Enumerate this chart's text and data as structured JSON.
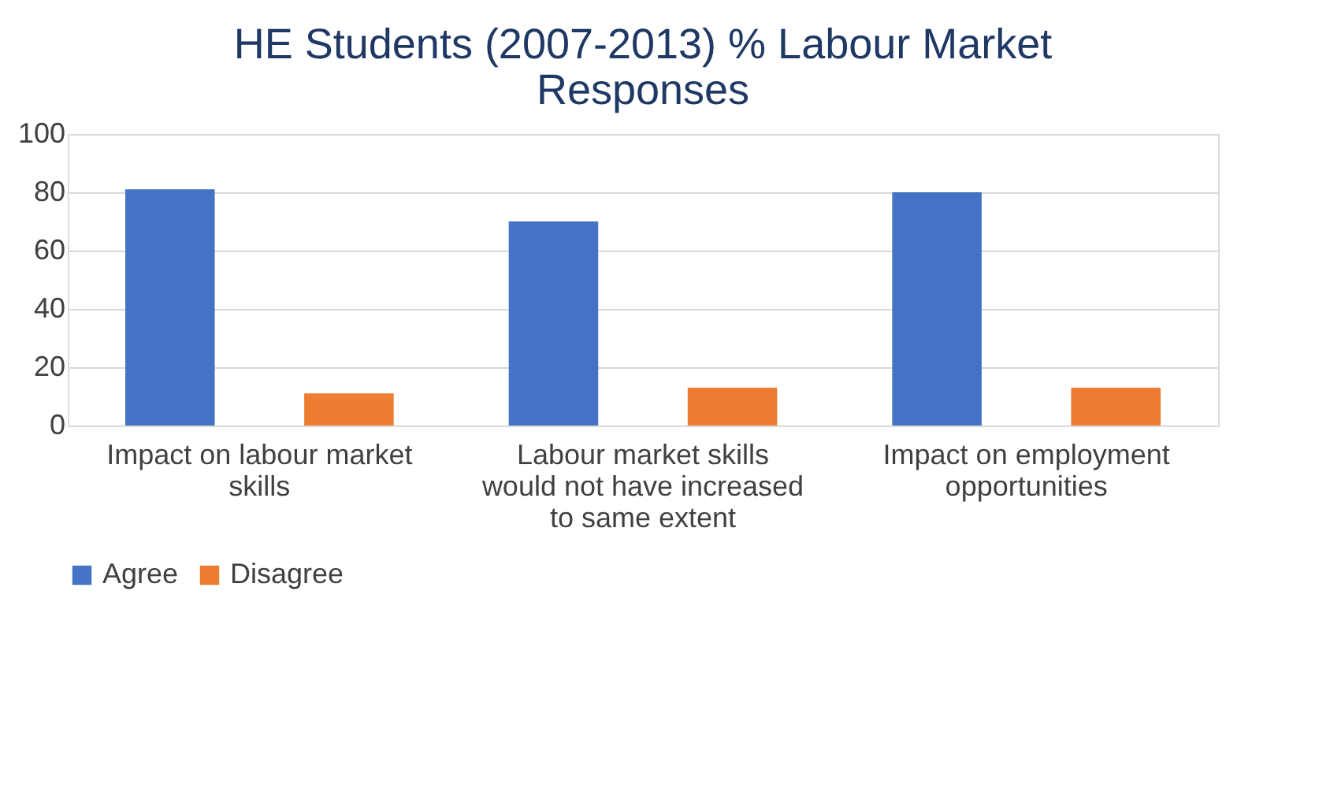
{
  "chart_data": {
    "type": "bar",
    "title": "HE Students (2007-2013) % Labour Market Responses",
    "categories": [
      "Impact on labour market skills",
      "Labour market skills would not have increased to same extent",
      "Impact on employment opportunities"
    ],
    "series": [
      {
        "name": "Agree",
        "color": "#4472c4",
        "values": [
          81,
          70,
          80
        ]
      },
      {
        "name": "Disagree",
        "color": "#ed7d31",
        "values": [
          11,
          13,
          13
        ]
      }
    ],
    "ylim": [
      0,
      100
    ],
    "yticks": [
      0,
      20,
      40,
      60,
      80,
      100
    ],
    "grid": "y",
    "legend": "bottom"
  }
}
